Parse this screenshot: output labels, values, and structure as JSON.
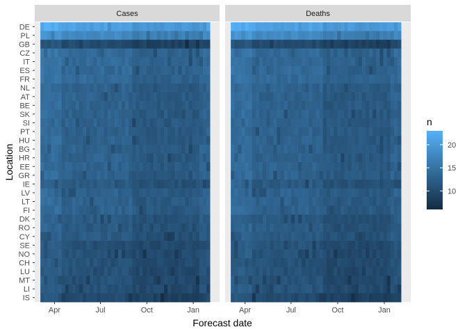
{
  "chart_data": {
    "type": "heatmap",
    "xlabel": "Forecast date",
    "ylabel": "Location",
    "facets": [
      "Cases",
      "Deaths"
    ],
    "locations": [
      "DE",
      "PL",
      "GB",
      "CZ",
      "IT",
      "ES",
      "FR",
      "NL",
      "AT",
      "BE",
      "SK",
      "SI",
      "PT",
      "HU",
      "BG",
      "HR",
      "EE",
      "GR",
      "IE",
      "LV",
      "LT",
      "FI",
      "DK",
      "RO",
      "CY",
      "SE",
      "NO",
      "CH",
      "LU",
      "MT",
      "LI",
      "IS"
    ],
    "x_ticks": [
      "Apr",
      "Jul",
      "Oct",
      "Jan"
    ],
    "weeks": [
      "2021-03-08",
      "2021-03-15",
      "2021-03-22",
      "2021-03-29",
      "2021-04-05",
      "2021-04-12",
      "2021-04-19",
      "2021-04-26",
      "2021-05-03",
      "2021-05-10",
      "2021-05-17",
      "2021-05-24",
      "2021-05-31",
      "2021-06-07",
      "2021-06-14",
      "2021-06-21",
      "2021-06-28",
      "2021-07-05",
      "2021-07-12",
      "2021-07-19",
      "2021-07-26",
      "2021-08-02",
      "2021-08-09",
      "2021-08-16",
      "2021-08-23",
      "2021-08-30",
      "2021-09-06",
      "2021-09-13",
      "2021-09-20",
      "2021-09-27",
      "2021-10-04",
      "2021-10-11",
      "2021-10-18",
      "2021-10-25",
      "2021-11-01",
      "2021-11-08",
      "2021-11-15",
      "2021-11-22",
      "2021-11-29",
      "2021-12-06",
      "2021-12-13",
      "2021-12-20",
      "2021-12-27",
      "2022-01-03",
      "2022-01-10",
      "2022-01-17",
      "2022-01-24",
      "2022-01-31"
    ],
    "base_n": {
      "DE": 21,
      "PL": 18,
      "GB": 10,
      "CZ": 14,
      "IT": 14,
      "ES": 14,
      "FR": 14,
      "NL": 13,
      "AT": 13,
      "BE": 13,
      "SK": 13,
      "SI": 13,
      "PT": 13,
      "HU": 13,
      "BG": 13,
      "HR": 13,
      "EE": 13,
      "GR": 13,
      "IE": 12,
      "LV": 13,
      "LT": 13,
      "FI": 13,
      "DK": 12,
      "RO": 12,
      "CY": 12,
      "SE": 11,
      "NO": 11,
      "CH": 11,
      "LU": 11,
      "MT": 11,
      "LI": 11,
      "IS": 10
    },
    "legend": {
      "title": "n",
      "range": [
        6,
        23
      ],
      "ticks": [
        10,
        15,
        20
      ],
      "low_color": "#132B43",
      "high_color": "#56B1F7"
    }
  }
}
